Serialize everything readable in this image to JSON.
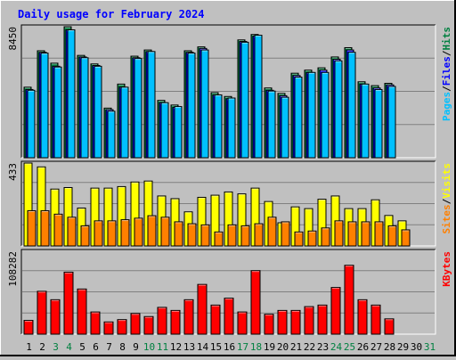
{
  "chart_data": [
    {
      "type": "bar",
      "title": "Daily usage for February 2024",
      "panel": "pages-files-hits",
      "ymax_label": "8450",
      "ylim": [
        0,
        8450
      ],
      "grid": true,
      "categories": [
        "1",
        "2",
        "3",
        "4",
        "5",
        "6",
        "7",
        "8",
        "9",
        "10",
        "11",
        "12",
        "13",
        "14",
        "15",
        "16",
        "17",
        "18",
        "19",
        "20",
        "21",
        "22",
        "23",
        "24",
        "25",
        "26",
        "27",
        "28",
        "29",
        "30",
        "31"
      ],
      "weekend_days": [
        "3",
        "4",
        "10",
        "11",
        "17",
        "18",
        "24",
        "25",
        "31"
      ],
      "series": [
        {
          "name": "Hits",
          "color": "#008040",
          "values": [
            4550,
            6900,
            6100,
            8450,
            6600,
            6050,
            3200,
            4750,
            6550,
            6950,
            3700,
            3400,
            6900,
            7150,
            4200,
            3950,
            7600,
            7950,
            4500,
            4150,
            5450,
            5650,
            5800,
            6500,
            7100,
            4900,
            4650,
            4800,
            null,
            null,
            null
          ]
        },
        {
          "name": "Files",
          "color": "#0000ff",
          "values": [
            4400,
            6800,
            5900,
            8250,
            6500,
            5950,
            3100,
            4550,
            6450,
            6850,
            3550,
            3250,
            6800,
            7050,
            4050,
            3800,
            7500,
            7850,
            4350,
            4000,
            5300,
            5500,
            5650,
            6350,
            6950,
            4750,
            4500,
            4700,
            null,
            null,
            null
          ]
        },
        {
          "name": "Pages",
          "color": "#00c0ff",
          "values": [
            4350,
            6750,
            5850,
            8250,
            6450,
            5900,
            3000,
            4550,
            6400,
            6850,
            3550,
            3300,
            6750,
            6950,
            4050,
            3850,
            7450,
            7900,
            4300,
            3900,
            5200,
            5500,
            5500,
            6250,
            6800,
            4750,
            4400,
            4600,
            null,
            null,
            null
          ]
        }
      ]
    },
    {
      "type": "bar",
      "panel": "visits-sites",
      "ymax_label": "433",
      "ylim": [
        0,
        433
      ],
      "grid": true,
      "series": [
        {
          "name": "Visits",
          "color": "#ffff00",
          "values": [
            433,
            413,
            297,
            305,
            198,
            302,
            302,
            310,
            334,
            339,
            261,
            247,
            178,
            254,
            265,
            282,
            272,
            302,
            232,
            121,
            204,
            195,
            244,
            261,
            195,
            195,
            241,
            159,
            131,
            null,
            null
          ]
        },
        {
          "name": "Sites",
          "color": "#ff8000",
          "values": [
            184,
            184,
            166,
            150,
            105,
            131,
            131,
            137,
            145,
            158,
            150,
            126,
            116,
            110,
            73,
            110,
            105,
            116,
            150,
            126,
            73,
            78,
            94,
            131,
            126,
            126,
            126,
            105,
            84,
            null,
            null
          ]
        }
      ]
    },
    {
      "type": "bar",
      "panel": "kbytes",
      "ymax_label": "108282",
      "ylim": [
        0,
        108282
      ],
      "grid": true,
      "series": [
        {
          "name": "KBytes",
          "color": "#ff0000",
          "values": [
            18000,
            56000,
            45000,
            81000,
            59000,
            29000,
            16000,
            19000,
            27000,
            23000,
            35000,
            31000,
            45000,
            65000,
            38000,
            47000,
            29000,
            83000,
            26000,
            31000,
            31000,
            36000,
            38000,
            61000,
            90000,
            45000,
            38000,
            20000,
            null,
            null,
            null
          ]
        }
      ]
    }
  ]
}
